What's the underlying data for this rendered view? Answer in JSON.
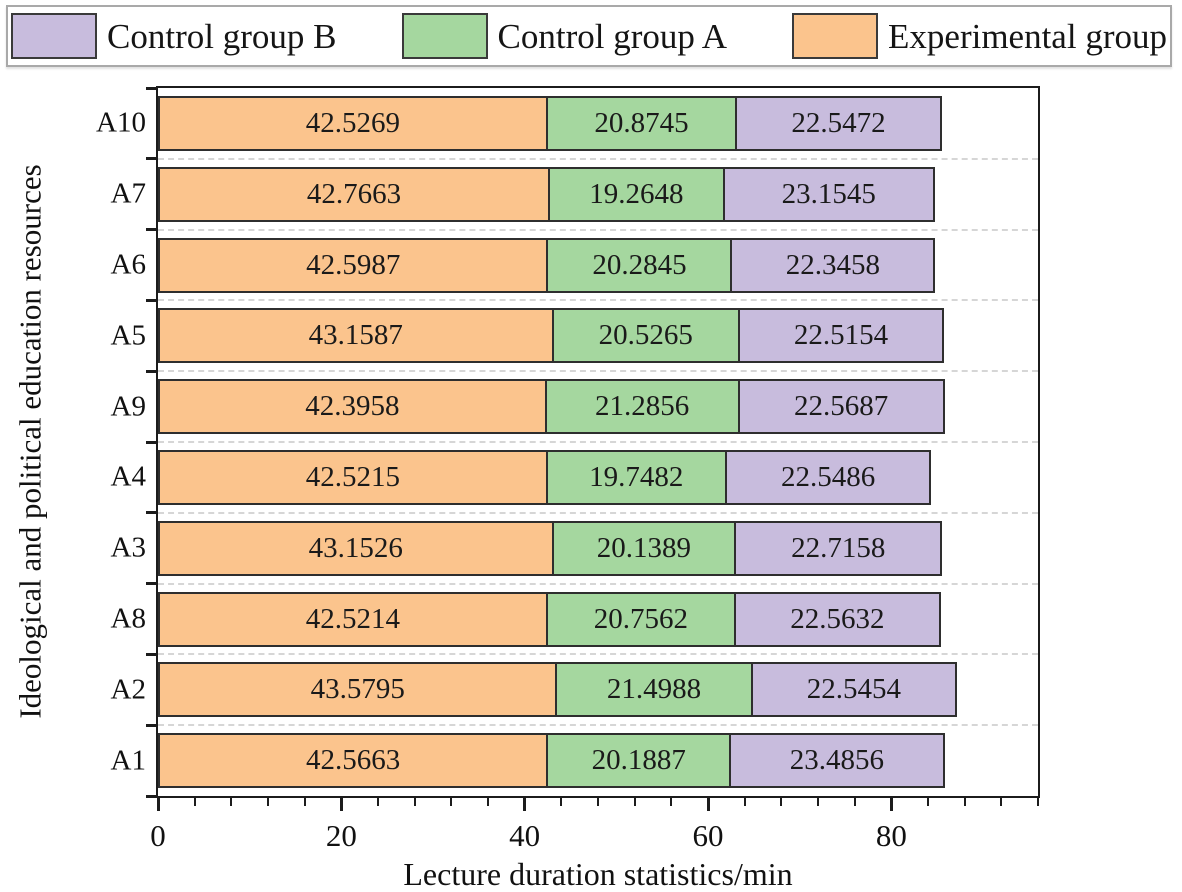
{
  "chart_data": {
    "type": "bar",
    "orientation": "horizontal",
    "stacked": true,
    "xlabel": "Lecture duration statistics/min",
    "ylabel": "Ideological and political education resources",
    "xlim": [
      0,
      96
    ],
    "x_major_ticks": [
      0,
      20,
      40,
      60,
      80
    ],
    "x_minor_interval": 4,
    "grid": "horizontal-dashed",
    "categories": [
      "A10",
      "A7",
      "A6",
      "A5",
      "A9",
      "A4",
      "A3",
      "A8",
      "A2",
      "A1"
    ],
    "series": [
      {
        "name": "Experimental group",
        "color": "#fbc48d",
        "values": [
          42.5269,
          42.7663,
          42.5987,
          43.1587,
          42.3958,
          42.5215,
          43.1526,
          42.5214,
          43.5795,
          42.5663
        ]
      },
      {
        "name": "Control group A",
        "color": "#a5d79f",
        "values": [
          20.8745,
          19.2648,
          20.2845,
          20.5265,
          21.2856,
          19.7482,
          20.1389,
          20.7562,
          21.4988,
          20.1887
        ]
      },
      {
        "name": "Control group B",
        "color": "#c8bcdd",
        "values": [
          22.5472,
          23.1545,
          22.3458,
          22.5154,
          22.5687,
          22.5486,
          22.7158,
          22.5632,
          22.5454,
          23.4856
        ]
      }
    ],
    "legend": {
      "position": "top",
      "items": [
        {
          "label": "Control group B",
          "color": "#c8bcdd"
        },
        {
          "label": "Control group A",
          "color": "#a5d79f"
        },
        {
          "label": "Experimental group",
          "color": "#fbc48d"
        }
      ]
    }
  }
}
